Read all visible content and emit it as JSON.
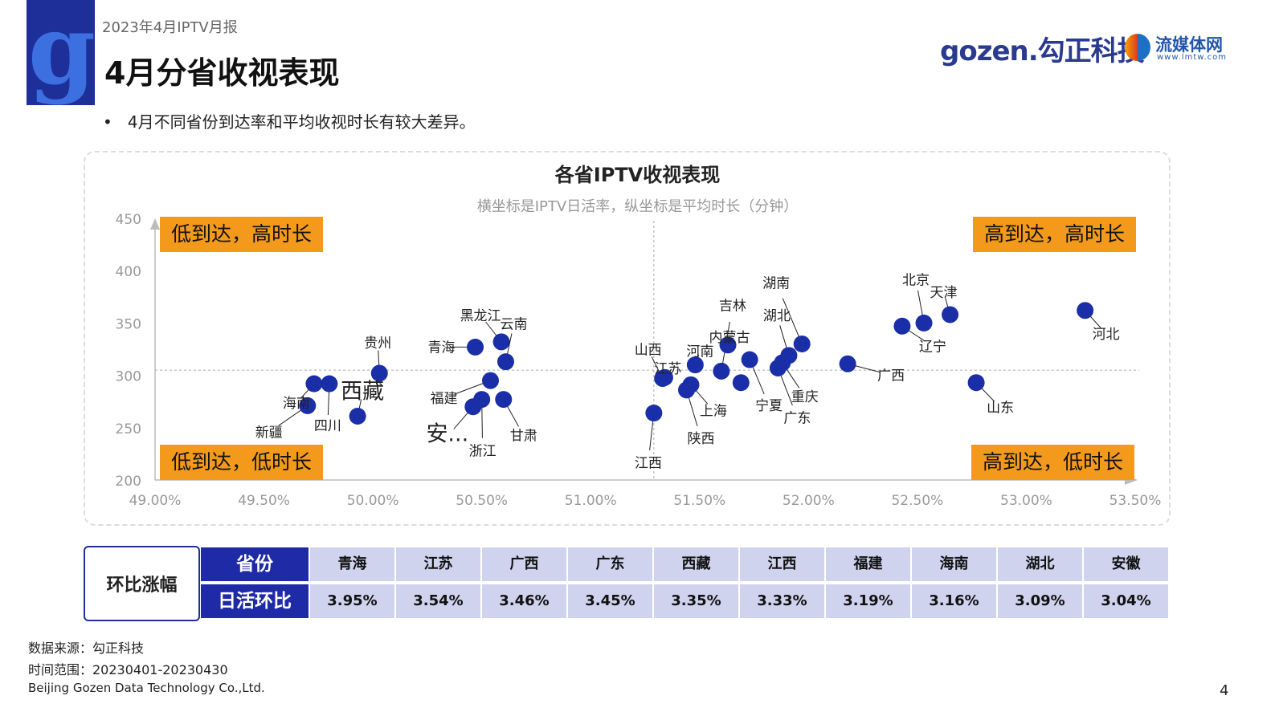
{
  "header": {
    "report_label": "2023年4月IPTV月报",
    "title": "4月分省收视表现",
    "bullet": "4月不同省份到达率和平均收视时长有较大差异。",
    "logo_letter": "g",
    "gozen_logo": "gozen.勾正科技",
    "lmtw_logo": "流媒体网",
    "lmtw_url": "www.lmtw.com"
  },
  "chart_data": {
    "type": "scatter",
    "title": "各省IPTV收视表现",
    "subtitle": "横坐标是IPTV日活率，纵坐标是平均时长（分钟）",
    "xlim": [
      49.0,
      53.5
    ],
    "ylim": [
      200,
      450
    ],
    "x_ticks": [
      "49.00%",
      "49.50%",
      "50.00%",
      "50.50%",
      "51.00%",
      "51.50%",
      "52.00%",
      "52.50%",
      "53.00%",
      "53.50%"
    ],
    "y_ticks": [
      "200",
      "250",
      "300",
      "350",
      "400",
      "450"
    ],
    "reference_lines": {
      "x": 51.29,
      "y": 305
    },
    "quadrants": {
      "top_left": "低到达，高时长",
      "top_right": "高到达，高时长",
      "bottom_left": "低到达，低时长",
      "bottom_right": "高到达，低时长"
    },
    "point_color": "#1a2ea8",
    "quadrant_color": "#f39a1c",
    "points": [
      {
        "name": "新疆",
        "x": 49.7,
        "y": 271
      },
      {
        "name": "海南",
        "x": 49.73,
        "y": 292
      },
      {
        "name": "四川",
        "x": 49.8,
        "y": 292
      },
      {
        "name": "贵州",
        "x": 50.03,
        "y": 302
      },
      {
        "name": "西藏",
        "x": 49.93,
        "y": 261
      },
      {
        "name": "青海",
        "x": 50.47,
        "y": 327
      },
      {
        "name": "黑龙江",
        "x": 50.59,
        "y": 332
      },
      {
        "name": "云南",
        "x": 50.61,
        "y": 313
      },
      {
        "name": "福建",
        "x": 50.54,
        "y": 295
      },
      {
        "name": "浙江",
        "x": 50.5,
        "y": 277
      },
      {
        "name": "安...",
        "x": 50.46,
        "y": 270
      },
      {
        "name": "甘肃",
        "x": 50.6,
        "y": 277
      },
      {
        "name": "江西",
        "x": 51.29,
        "y": 264
      },
      {
        "name": "山西",
        "x": 51.33,
        "y": 297
      },
      {
        "name": "江苏",
        "x": 51.34,
        "y": 298
      },
      {
        "name": "河南",
        "x": 51.48,
        "y": 310
      },
      {
        "name": "上海",
        "x": 51.46,
        "y": 291
      },
      {
        "name": "陕西",
        "x": 51.44,
        "y": 286
      },
      {
        "name": "吉林",
        "x": 51.6,
        "y": 304
      },
      {
        "name": "内蒙古",
        "x": 51.63,
        "y": 329
      },
      {
        "name": "宁夏",
        "x": 51.73,
        "y": 315
      },
      {
        "name": "湖南",
        "x": 51.97,
        "y": 330
      },
      {
        "name": "湖北",
        "x": 51.91,
        "y": 319
      },
      {
        "name": "重庆",
        "x": 51.88,
        "y": 312
      },
      {
        "name": "广东",
        "x": 51.86,
        "y": 307
      },
      {
        "name": "广西",
        "x": 52.18,
        "y": 311
      },
      {
        "name": "辽宁",
        "x": 52.43,
        "y": 347
      },
      {
        "name": "北京",
        "x": 52.53,
        "y": 350
      },
      {
        "name": "天津",
        "x": 52.65,
        "y": 358
      },
      {
        "name": "山东",
        "x": 52.77,
        "y": 293
      },
      {
        "name": "河北",
        "x": 53.27,
        "y": 362
      },
      {
        "name": "",
        "x": 51.69,
        "y": 293
      }
    ]
  },
  "table": {
    "side_label": "环比涨幅",
    "row1_header": "省份",
    "row2_header": "日活环比",
    "provinces": [
      "青海",
      "江苏",
      "广西",
      "广东",
      "西藏",
      "江西",
      "福建",
      "海南",
      "湖北",
      "安徽"
    ],
    "values": [
      "3.95%",
      "3.54%",
      "3.46%",
      "3.45%",
      "3.35%",
      "3.33%",
      "3.19%",
      "3.16%",
      "3.09%",
      "3.04%"
    ]
  },
  "footer": {
    "source": "数据来源：勾正科技",
    "range": "时间范围：20230401-20230430",
    "company": "Beijing Gozen Data Technology Co.,Ltd.",
    "page": "4"
  }
}
